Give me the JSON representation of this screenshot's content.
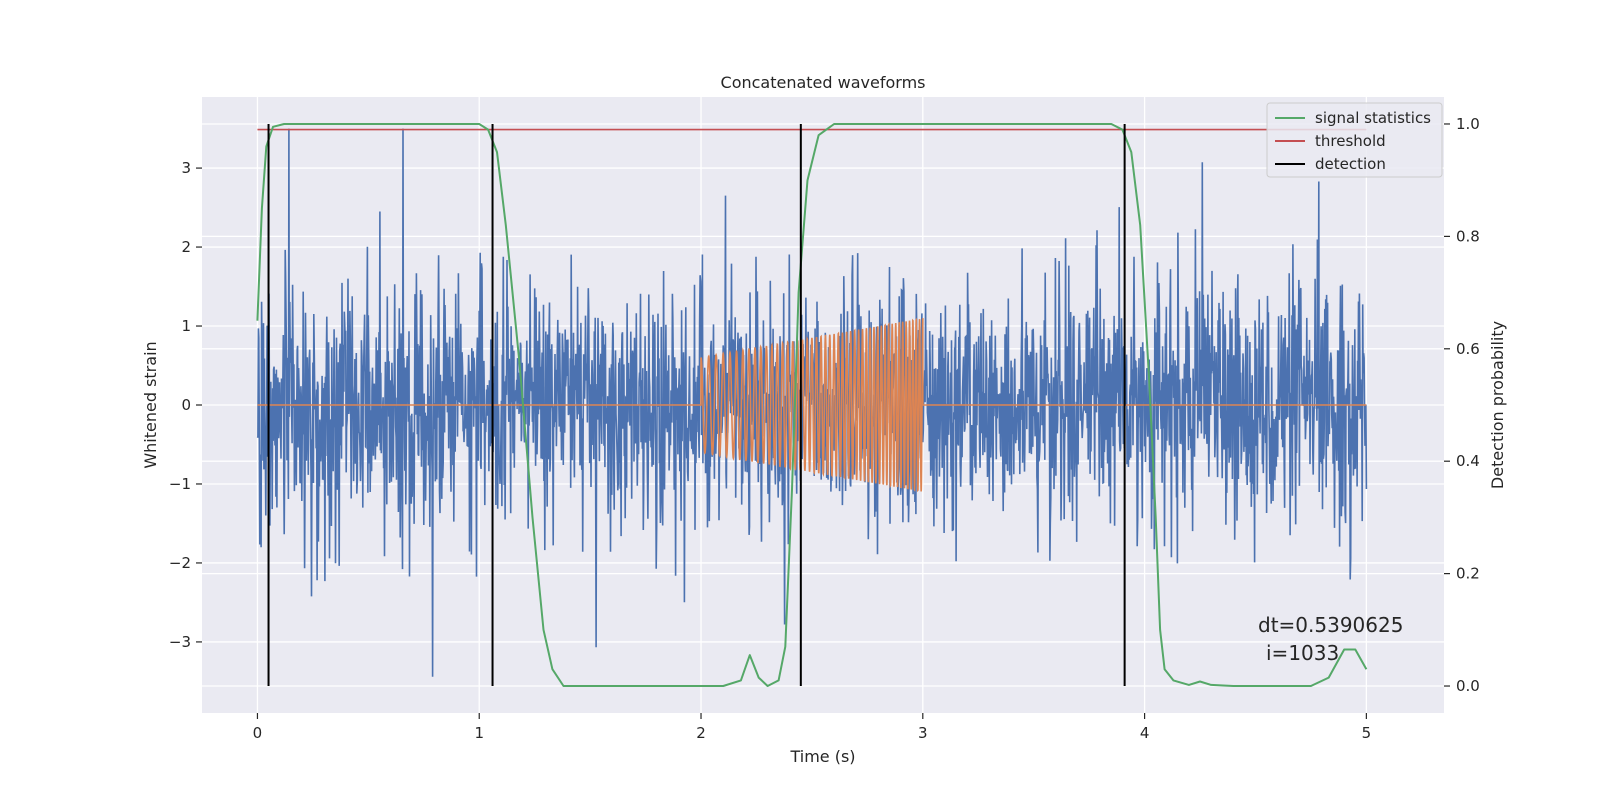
{
  "chart_data": {
    "type": "line",
    "title": "Concatenated waveforms",
    "xlabel": "Time (s)",
    "ylabel": "Whitened strain",
    "y2label": "Detection probability",
    "xlim": [
      -0.25,
      5.35
    ],
    "ylim": [
      -3.9,
      3.9
    ],
    "y2lim": [
      -0.048,
      1.048
    ],
    "x_ticks": [
      0,
      1,
      2,
      3,
      4,
      5
    ],
    "y_ticks": [
      -3,
      -2,
      -1,
      0,
      1,
      2,
      3
    ],
    "y2_ticks": [
      0.0,
      0.2,
      0.4,
      0.6,
      0.8,
      1.0
    ],
    "x_tick_labels": [
      "0",
      "1",
      "2",
      "3",
      "4",
      "5"
    ],
    "y_tick_labels": [
      "−3",
      "−2",
      "−1",
      "0",
      "1",
      "2",
      "3"
    ],
    "y2_tick_labels": [
      "0.0",
      "0.2",
      "0.4",
      "0.6",
      "0.8",
      "1.0"
    ],
    "grid": true,
    "legend_location": "upper right",
    "legend": [
      "signal statistics",
      "threshold",
      "detection"
    ],
    "colors": {
      "noise": "#4c72b0",
      "injected": "#dd8452",
      "signal_statistics": "#55a868",
      "threshold": "#c44e52",
      "detection": "#000000",
      "background": "#eaeaf2"
    },
    "noise": {
      "x_range": [
        0,
        5
      ],
      "sigma": 0.75,
      "peak_amplitude": 3.5
    },
    "injected_signal": {
      "x_start": 2.0,
      "x_end": 3.0,
      "amplitude_start": 0.6,
      "amplitude_end": 1.1
    },
    "threshold": 0.99,
    "detections": [
      0.05,
      1.06,
      2.45,
      3.91
    ],
    "signal_statistics": [
      [
        0.0,
        0.65
      ],
      [
        0.02,
        0.85
      ],
      [
        0.04,
        0.96
      ],
      [
        0.07,
        0.995
      ],
      [
        0.12,
        1.0
      ],
      [
        1.0,
        1.0
      ],
      [
        1.04,
        0.99
      ],
      [
        1.08,
        0.95
      ],
      [
        1.12,
        0.82
      ],
      [
        1.18,
        0.58
      ],
      [
        1.24,
        0.3
      ],
      [
        1.29,
        0.1
      ],
      [
        1.33,
        0.03
      ],
      [
        1.38,
        0.0
      ],
      [
        2.1,
        0.0
      ],
      [
        2.18,
        0.01
      ],
      [
        2.22,
        0.055
      ],
      [
        2.26,
        0.015
      ],
      [
        2.3,
        0.0
      ],
      [
        2.35,
        0.01
      ],
      [
        2.38,
        0.07
      ],
      [
        2.41,
        0.35
      ],
      [
        2.44,
        0.7
      ],
      [
        2.48,
        0.9
      ],
      [
        2.53,
        0.98
      ],
      [
        2.6,
        1.0
      ],
      [
        3.85,
        1.0
      ],
      [
        3.9,
        0.99
      ],
      [
        3.94,
        0.95
      ],
      [
        3.98,
        0.82
      ],
      [
        4.02,
        0.55
      ],
      [
        4.05,
        0.3
      ],
      [
        4.07,
        0.1
      ],
      [
        4.09,
        0.03
      ],
      [
        4.13,
        0.01
      ],
      [
        4.2,
        0.002
      ],
      [
        4.25,
        0.008
      ],
      [
        4.3,
        0.002
      ],
      [
        4.4,
        0.0
      ],
      [
        4.75,
        0.0
      ],
      [
        4.83,
        0.015
      ],
      [
        4.9,
        0.065
      ],
      [
        4.95,
        0.065
      ],
      [
        5.0,
        0.03
      ]
    ],
    "annotations": [
      "dt=0.5390625",
      "i=1033"
    ]
  }
}
